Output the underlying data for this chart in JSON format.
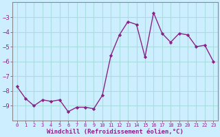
{
  "x": [
    0,
    1,
    2,
    3,
    4,
    5,
    6,
    7,
    8,
    9,
    10,
    11,
    12,
    13,
    14,
    15,
    16,
    17,
    18,
    19,
    20,
    21,
    22,
    23
  ],
  "y": [
    -7.7,
    -8.5,
    -9.0,
    -8.6,
    -8.7,
    -8.6,
    -9.4,
    -9.1,
    -9.1,
    -9.2,
    -8.3,
    -5.6,
    -4.2,
    -3.3,
    -3.5,
    -5.7,
    -2.7,
    -4.1,
    -4.7,
    -4.1,
    -4.2,
    -5.0,
    -4.9,
    -6.0
  ],
  "line_color": "#882288",
  "marker": "D",
  "marker_size": 2.2,
  "bg_color": "#cceeff",
  "grid_color": "#aadddd",
  "xlabel": "Windchill (Refroidissement éolien,°C)",
  "xlabel_color": "#882288",
  "tick_color": "#882288",
  "spine_color": "#888888",
  "ylim": [
    -10.0,
    -2.0
  ],
  "xlim": [
    -0.5,
    23.5
  ],
  "yticks": [
    -9,
    -8,
    -7,
    -6,
    -5,
    -4,
    -3
  ],
  "xticks": [
    0,
    1,
    2,
    3,
    4,
    5,
    6,
    7,
    8,
    9,
    10,
    11,
    12,
    13,
    14,
    15,
    16,
    17,
    18,
    19,
    20,
    21,
    22,
    23
  ],
  "xtick_fontsize": 5.0,
  "ytick_fontsize": 6.5,
  "xlabel_fontsize": 6.5
}
